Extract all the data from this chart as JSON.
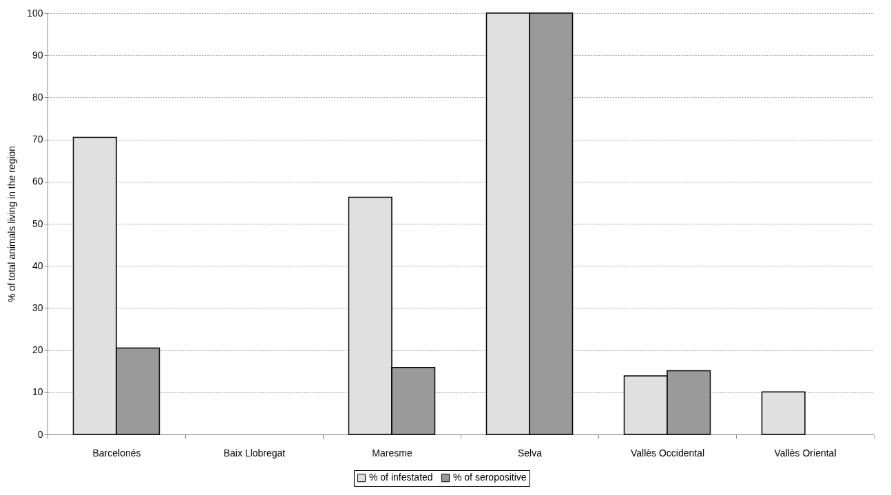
{
  "chart_data": {
    "type": "bar",
    "ylabel": "% of total animals living in the region",
    "categories": [
      "Barcelonés",
      "Baix Llobregat",
      "Maresme",
      "Selva",
      "Vallès Occidental",
      "Vallès Oriental"
    ],
    "series": [
      {
        "name": "% of infestated",
        "color": "#e0e0e0",
        "values": [
          70.5,
          null,
          56.3,
          100,
          13.9,
          10.1
        ]
      },
      {
        "name": "% of seropositive",
        "color": "#9a9a9a",
        "values": [
          20.5,
          null,
          15.9,
          100,
          15.1,
          null
        ]
      }
    ],
    "ylim": [
      0,
      100
    ],
    "yticks": [
      0,
      10,
      20,
      30,
      40,
      50,
      60,
      70,
      80,
      90,
      100
    ],
    "grid": "y",
    "legend": "bottom"
  }
}
